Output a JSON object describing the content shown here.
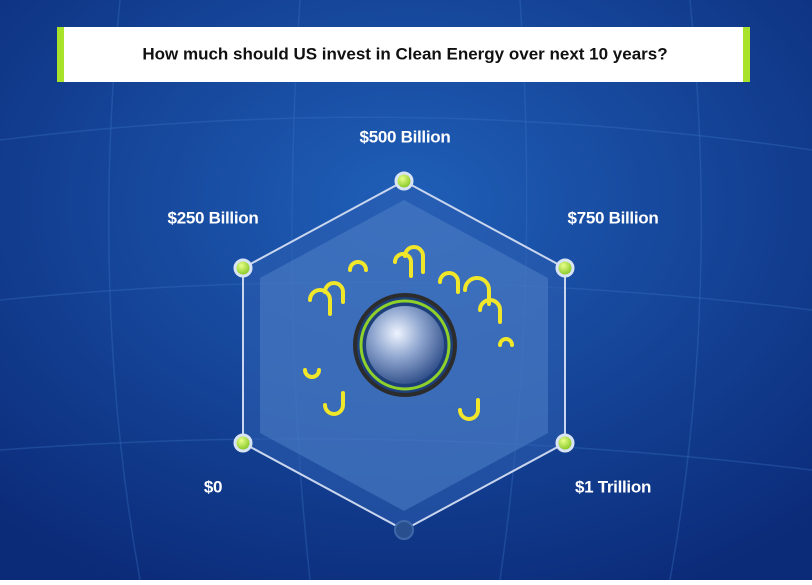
{
  "question": "How much should US invest in Clean Energy over next 10 years?",
  "options": [
    "$0",
    "$250 Billion",
    "$500 Billion",
    "$750 Billion",
    "$1 Trillion"
  ]
}
